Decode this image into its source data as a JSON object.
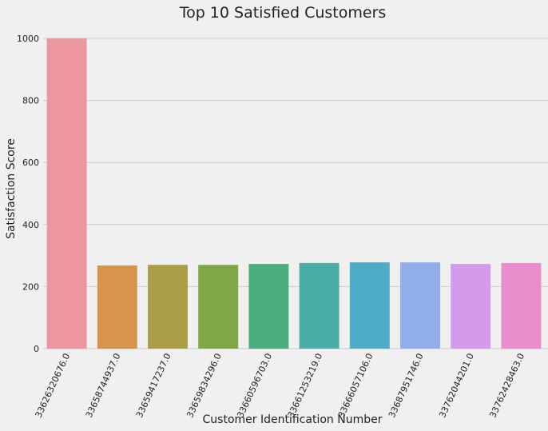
{
  "chart_data": {
    "type": "bar",
    "title": "Top 10 Satisfied Customers",
    "xlabel": "Customer Identification Number",
    "ylabel": "Satisfaction Score",
    "ylim": [
      0,
      1000
    ],
    "yticks": [
      "0",
      "200",
      "400",
      "600",
      "800",
      "1000"
    ],
    "grid": true,
    "categories": [
      "33626320676.0",
      "33658744937.0",
      "33659417237.0",
      "33659834296.0",
      "33660596703.0",
      "33661253219.0",
      "33666057106.0",
      "33687951746.0",
      "33762044201.0",
      "33762428463.0"
    ],
    "values": [
      1000,
      268,
      270,
      270,
      273,
      276,
      278,
      278,
      273,
      276
    ],
    "colors": [
      "#ec96a2",
      "#d8944d",
      "#aa9e46",
      "#80a745",
      "#4aad7c",
      "#4aaea6",
      "#4eacc7",
      "#91aeea",
      "#d49bea",
      "#ea8ecb"
    ]
  }
}
